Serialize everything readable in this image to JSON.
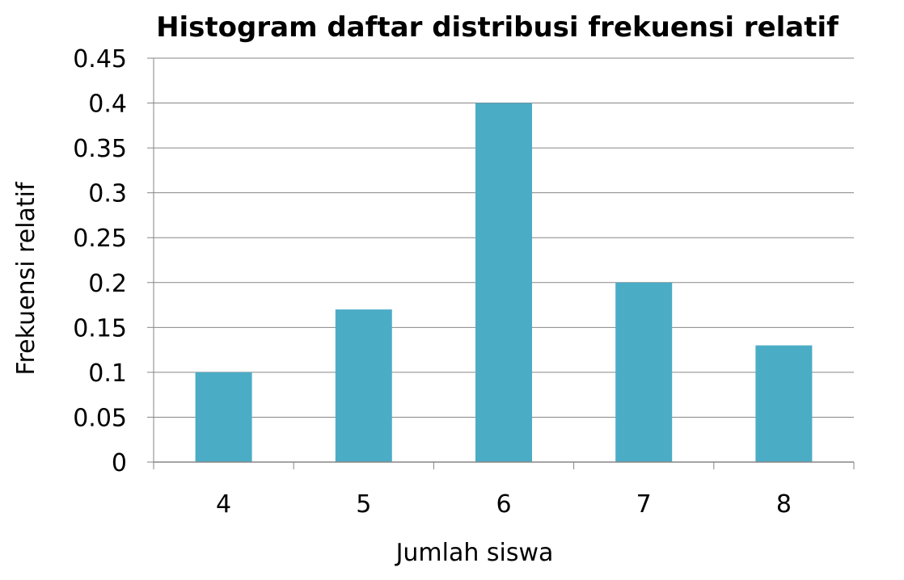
{
  "chart_data": {
    "type": "bar",
    "title": "Histogram daftar distribusi frekuensi relatif",
    "xlabel": "Jumlah siswa",
    "ylabel": "Frekuensi relatif",
    "categories": [
      "4",
      "5",
      "6",
      "7",
      "8"
    ],
    "values": [
      0.1,
      0.17,
      0.4,
      0.2,
      0.13
    ],
    "ylim": [
      0,
      0.45
    ],
    "yticks": [
      "0",
      "0.05",
      "0.1",
      "0.15",
      "0.2",
      "0.25",
      "0.3",
      "0.35",
      "0.4",
      "0.45"
    ],
    "grid": true,
    "legend": "none",
    "bar_color": "#4BACC6",
    "grid_color": "#868686"
  }
}
